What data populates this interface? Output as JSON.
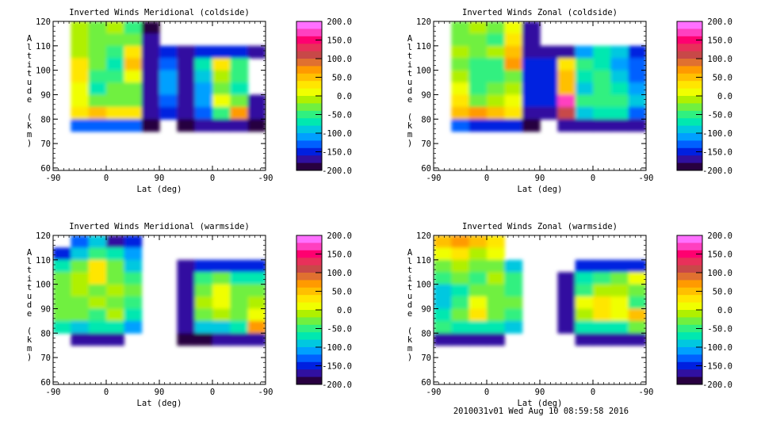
{
  "footer": "2010031v01 Wed Aug 10 08:59:58 2016",
  "colorbar": {
    "levels": [
      200,
      -200
    ],
    "tick_labels": [
      "200.0",
      "150.0",
      "100.0",
      "50.0",
      "0.0",
      "-50.0",
      "-100.0",
      "-150.0",
      "-200.0"
    ],
    "colors": [
      "#ff70ff",
      "#ff40c0",
      "#ff0070",
      "#e8305a",
      "#c84848",
      "#e07030",
      "#ff9a00",
      "#ffc000",
      "#ffe600",
      "#f0ff00",
      "#b0f000",
      "#70f040",
      "#30f080",
      "#00e8b0",
      "#00c8e0",
      "#00a0ff",
      "#0060ff",
      "#0020e0",
      "#3010a0",
      "#280040"
    ]
  },
  "chart_data": [
    {
      "type": "heatmap",
      "title": "Inverted Winds Meridional (coldside)",
      "xlabel": "Lat (deg)",
      "ylabel": "Altitude (km)",
      "xtick_labels": [
        "-90",
        "0",
        "90",
        "0",
        "-90"
      ],
      "ytick_labels": [
        "60",
        "70",
        "80",
        "90",
        "100",
        "110",
        "120"
      ],
      "ylim": [
        59,
        120
      ],
      "zlim": [
        -200,
        200
      ],
      "altitudes": [
        117.5,
        112.5,
        107.5,
        102.5,
        97.5,
        92.5,
        87.5,
        82.5,
        77.5
      ],
      "values": [
        [
          null,
          -10,
          -20,
          -10,
          -40,
          -180,
          null,
          null,
          null,
          null,
          null,
          null
        ],
        [
          null,
          -10,
          -30,
          -20,
          -30,
          -170,
          null,
          null,
          null,
          null,
          null,
          null
        ],
        [
          null,
          0,
          -20,
          -50,
          30,
          -170,
          -150,
          -170,
          -150,
          -140,
          -150,
          -170
        ],
        [
          null,
          30,
          -20,
          -60,
          60,
          -160,
          -120,
          -160,
          -60,
          30,
          -40,
          null
        ],
        [
          null,
          40,
          -40,
          -40,
          20,
          -160,
          -110,
          -160,
          -90,
          0,
          -40,
          null
        ],
        [
          null,
          20,
          -60,
          -30,
          -20,
          -160,
          -110,
          -160,
          -110,
          -20,
          -70,
          null
        ],
        [
          null,
          10,
          -30,
          -20,
          -30,
          -160,
          -120,
          -160,
          -110,
          10,
          -20,
          -170
        ],
        [
          null,
          40,
          50,
          40,
          30,
          -160,
          -140,
          -160,
          -120,
          -40,
          70,
          -170
        ],
        [
          null,
          -120,
          -130,
          -130,
          -130,
          -180,
          null,
          -180,
          -170,
          -170,
          -170,
          -180
        ]
      ]
    },
    {
      "type": "heatmap",
      "title": "Inverted Winds Zonal (coldside)",
      "xlabel": "Lat (deg)",
      "ylabel": "Altitude (km)",
      "xtick_labels": [
        "-90",
        "0",
        "90",
        "0",
        "-90"
      ],
      "ytick_labels": [
        "60",
        "70",
        "80",
        "90",
        "100",
        "110",
        "120"
      ],
      "ylim": [
        59,
        120
      ],
      "zlim": [
        -200,
        200
      ],
      "altitudes": [
        117.5,
        112.5,
        107.5,
        102.5,
        97.5,
        92.5,
        87.5,
        82.5,
        77.5
      ],
      "values": [
        [
          null,
          -20,
          0,
          -30,
          20,
          -170,
          null,
          null,
          null,
          null,
          null,
          null
        ],
        [
          null,
          -30,
          -20,
          -40,
          30,
          -160,
          null,
          null,
          null,
          null,
          null,
          null
        ],
        [
          null,
          -10,
          -30,
          -10,
          60,
          -160,
          -160,
          -170,
          -100,
          -60,
          -90,
          -150
        ],
        [
          null,
          -30,
          -40,
          -50,
          80,
          -150,
          -140,
          30,
          -40,
          -70,
          -100,
          -130
        ],
        [
          null,
          -10,
          -50,
          -40,
          -30,
          -150,
          -140,
          50,
          -60,
          -40,
          -90,
          -120
        ],
        [
          null,
          20,
          -40,
          -30,
          -10,
          -150,
          -140,
          60,
          -80,
          -50,
          -60,
          -110
        ],
        [
          null,
          30,
          -20,
          -10,
          10,
          -150,
          -150,
          170,
          -40,
          -40,
          -40,
          -90
        ],
        [
          null,
          50,
          80,
          60,
          40,
          -160,
          -160,
          120,
          -80,
          -60,
          -60,
          -120
        ],
        [
          null,
          -130,
          -140,
          -140,
          -140,
          -180,
          null,
          -170,
          -170,
          -170,
          -170,
          -170
        ]
      ]
    },
    {
      "type": "heatmap",
      "title": "Inverted Winds Meridional (warmside)",
      "xlabel": "Lat (deg)",
      "ylabel": "Altitude (km)",
      "xtick_labels": [
        "-90",
        "0",
        "90",
        "0",
        "-90"
      ],
      "ytick_labels": [
        "60",
        "70",
        "80",
        "90",
        "100",
        "110",
        "120"
      ],
      "ylim": [
        59,
        120
      ],
      "zlim": [
        -200,
        200
      ],
      "altitudes": [
        117.5,
        112.5,
        107.5,
        102.5,
        97.5,
        92.5,
        87.5,
        82.5,
        77.5
      ],
      "values": [
        [
          null,
          -120,
          -90,
          -170,
          -150,
          null,
          null,
          null,
          null,
          null,
          null,
          null
        ],
        [
          -150,
          -80,
          -50,
          -60,
          -110,
          null,
          null,
          null,
          null,
          null,
          null,
          null
        ],
        [
          -60,
          -30,
          30,
          -30,
          -80,
          null,
          null,
          -170,
          -150,
          -150,
          -150,
          -150
        ],
        [
          -20,
          -10,
          40,
          -20,
          -40,
          null,
          null,
          -170,
          -40,
          -30,
          -60,
          -60
        ],
        [
          -30,
          -10,
          -20,
          -10,
          -30,
          null,
          null,
          -170,
          -20,
          10,
          -30,
          -20
        ],
        [
          -20,
          -30,
          -10,
          -30,
          -40,
          null,
          null,
          -170,
          0,
          20,
          -20,
          -10
        ],
        [
          -30,
          -20,
          -40,
          -10,
          -60,
          null,
          null,
          -170,
          -30,
          -10,
          -30,
          20
        ],
        [
          -60,
          -80,
          -60,
          -70,
          -100,
          null,
          null,
          -170,
          -80,
          -90,
          -60,
          80
        ],
        [
          null,
          -160,
          -170,
          -170,
          null,
          null,
          null,
          -180,
          -180,
          -170,
          -170,
          -170
        ]
      ]
    },
    {
      "type": "heatmap",
      "title": "Inverted Winds Zonal (warmside)",
      "xlabel": "Lat (deg)",
      "ylabel": "Altitude (km)",
      "xtick_labels": [
        "-90",
        "0",
        "90",
        "0",
        "-90"
      ],
      "ytick_labels": [
        "60",
        "70",
        "80",
        "90",
        "100",
        "110",
        "120"
      ],
      "ylim": [
        59,
        120
      ],
      "zlim": [
        -200,
        200
      ],
      "altitudes": [
        117.5,
        112.5,
        107.5,
        102.5,
        97.5,
        92.5,
        87.5,
        82.5,
        77.5
      ],
      "values": [
        [
          60,
          80,
          50,
          40,
          null,
          null,
          null,
          null,
          null,
          null,
          null,
          null
        ],
        [
          20,
          40,
          -10,
          10,
          null,
          null,
          null,
          null,
          null,
          null,
          null,
          null
        ],
        [
          -30,
          -10,
          -20,
          -20,
          -80,
          null,
          null,
          null,
          -150,
          -140,
          -150,
          -140
        ],
        [
          -50,
          -30,
          -40,
          -10,
          -50,
          null,
          null,
          -170,
          -60,
          -40,
          -20,
          10
        ],
        [
          -80,
          -60,
          -20,
          -30,
          -40,
          null,
          null,
          -170,
          -40,
          -10,
          0,
          -20
        ],
        [
          -90,
          -40,
          10,
          -20,
          -30,
          null,
          null,
          -170,
          20,
          30,
          10,
          -40
        ],
        [
          -60,
          -20,
          40,
          -30,
          -40,
          null,
          null,
          -170,
          0,
          40,
          20,
          60
        ],
        [
          -50,
          -70,
          -60,
          -70,
          -90,
          null,
          null,
          -170,
          -60,
          -70,
          -60,
          -30
        ],
        [
          -160,
          -170,
          -170,
          -170,
          null,
          null,
          null,
          null,
          -170,
          -170,
          -170,
          -170
        ]
      ]
    }
  ]
}
